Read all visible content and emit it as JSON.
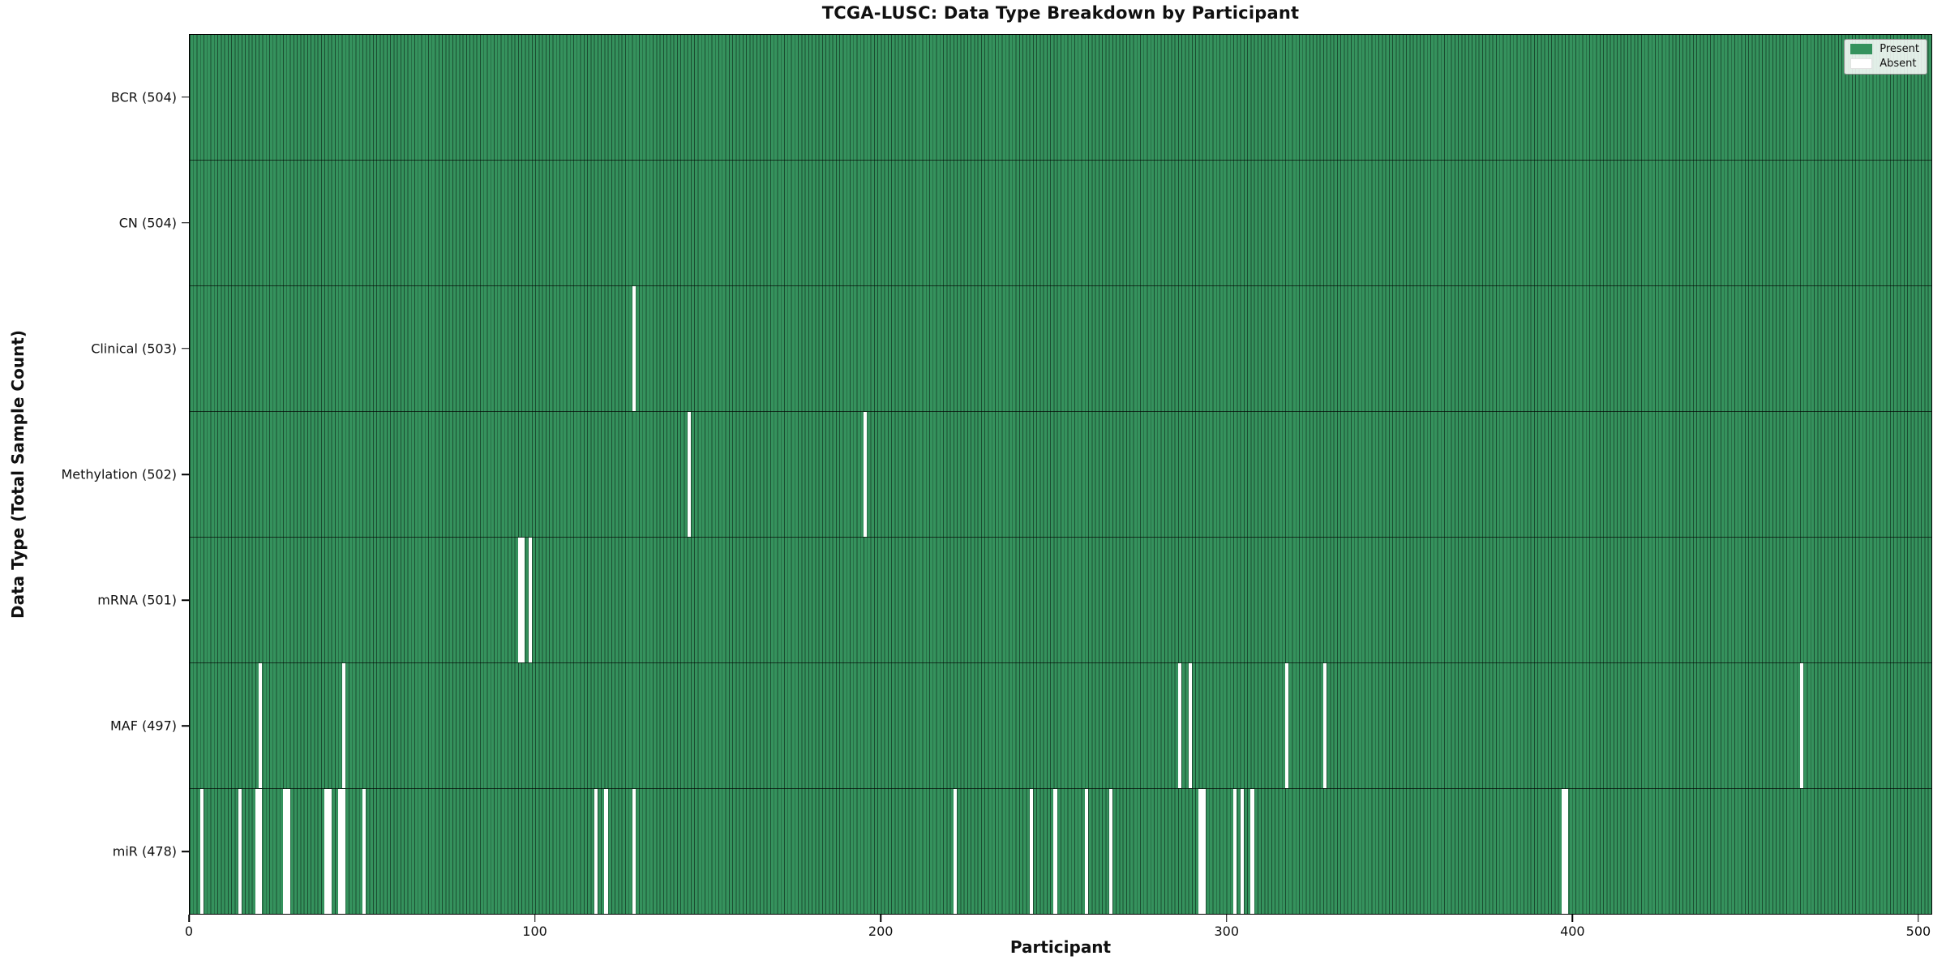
{
  "chart_data": {
    "type": "heatmap",
    "title": "TCGA-LUSC: Data Type Breakdown by Participant",
    "xlabel": "Participant",
    "ylabel": "Data Type (Total Sample Count)",
    "n_participants": 504,
    "xlim": [
      0,
      504
    ],
    "x_ticks": [
      0,
      100,
      200,
      300,
      400,
      500
    ],
    "grid": false,
    "legend": {
      "position": "upper right",
      "entries": [
        {
          "label": "Present",
          "color": "#35925d"
        },
        {
          "label": "Absent",
          "color": "#ffffff"
        }
      ]
    },
    "colors": {
      "present": "#35925d",
      "bar_edge": "#1b4d31",
      "absent": "#ffffff",
      "plot_border": "#000000"
    },
    "rows": [
      {
        "data_type": "BCR",
        "label": "BCR (504)",
        "present_count": 504,
        "absent_count": 0,
        "absent_participants": []
      },
      {
        "data_type": "CN",
        "label": "CN (504)",
        "present_count": 504,
        "absent_count": 0,
        "absent_participants": []
      },
      {
        "data_type": "Clinical",
        "label": "Clinical (503)",
        "present_count": 503,
        "absent_count": 1,
        "absent_participants": [
          128
        ]
      },
      {
        "data_type": "Methylation",
        "label": "Methylation (502)",
        "present_count": 502,
        "absent_count": 2,
        "absent_participants": [
          144,
          195
        ]
      },
      {
        "data_type": "mRNA",
        "label": "mRNA (501)",
        "present_count": 501,
        "absent_count": 3,
        "absent_participants": [
          95,
          96,
          98
        ]
      },
      {
        "data_type": "MAF",
        "label": "MAF (497)",
        "present_count": 497,
        "absent_count": 7,
        "absent_participants": [
          20,
          44,
          286,
          289,
          317,
          328,
          466
        ]
      },
      {
        "data_type": "miR",
        "label": "miR (478)",
        "present_count": 478,
        "absent_count": 26,
        "absent_participants": [
          3,
          14,
          19,
          20,
          27,
          28,
          39,
          40,
          43,
          44,
          50,
          117,
          120,
          128,
          221,
          243,
          250,
          259,
          266,
          292,
          293,
          302,
          304,
          307,
          397,
          398
        ]
      }
    ]
  }
}
